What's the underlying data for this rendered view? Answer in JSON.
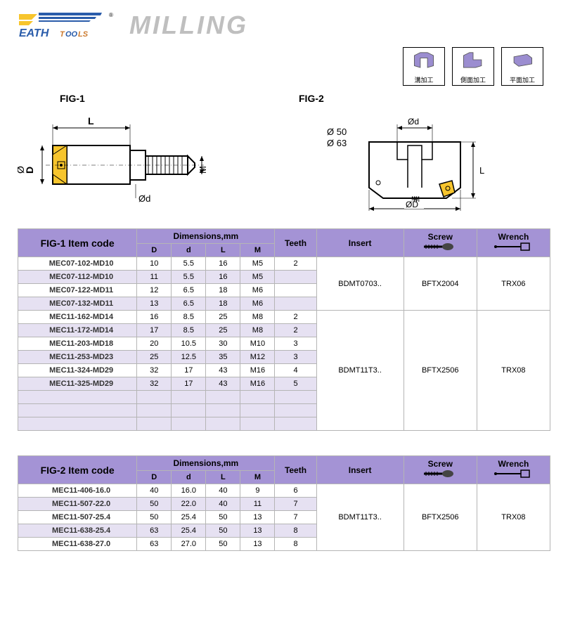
{
  "header": {
    "brand_top": "EATH",
    "brand_sub": "TOOLS",
    "title": "MILLING"
  },
  "icons": [
    {
      "label": "溝加工"
    },
    {
      "label": "側面加工"
    },
    {
      "label": "平面加工"
    }
  ],
  "fig1": {
    "title": "FIG-1",
    "labels": {
      "L": "L",
      "D": "D",
      "d": "Ød",
      "M": "M"
    }
  },
  "fig2": {
    "title": "FIG-2",
    "diam1": "Ø 50",
    "diam2": "Ø 63",
    "labels": {
      "d": "Ød",
      "D": "ØD",
      "M": "M",
      "L": "L"
    }
  },
  "table1": {
    "head_item": "FIG-1 Item code",
    "head_dim": "Dimensions,mm",
    "col_D": "D",
    "col_d": "d",
    "col_L": "L",
    "col_M": "M",
    "col_teeth": "Teeth",
    "col_insert": "Insert",
    "col_screw": "Screw",
    "col_wrench": "Wrench",
    "rows": [
      {
        "code": "MEC07-102-MD10",
        "D": "10",
        "d": "5.5",
        "L": "16",
        "M": "M5",
        "teeth": "2",
        "insert": "BDMT0703..",
        "screw": "BFTX2004",
        "wrench": "TRX06"
      },
      {
        "code": "MEC07-112-MD10",
        "D": "11",
        "d": "5.5",
        "L": "16",
        "M": "M5"
      },
      {
        "code": "MEC07-122-MD11",
        "D": "12",
        "d": "6.5",
        "L": "18",
        "M": "M6"
      },
      {
        "code": "MEC07-132-MD11",
        "D": "13",
        "d": "6.5",
        "L": "18",
        "M": "M6"
      },
      {
        "code": "MEC11-162-MD14",
        "D": "16",
        "d": "8.5",
        "L": "25",
        "M": "M8",
        "teeth": "2",
        "insert": "BDMT11T3..",
        "screw": "BFTX2506",
        "wrench": "TRX08"
      },
      {
        "code": "MEC11-172-MD14",
        "D": "17",
        "d": "8.5",
        "L": "25",
        "M": "M8",
        "teeth": "2"
      },
      {
        "code": "MEC11-203-MD18",
        "D": "20",
        "d": "10.5",
        "L": "30",
        "M": "M10",
        "teeth": "3"
      },
      {
        "code": "MEC11-253-MD23",
        "D": "25",
        "d": "12.5",
        "L": "35",
        "M": "M12",
        "teeth": "3"
      },
      {
        "code": "MEC11-324-MD29",
        "D": "32",
        "d": "17",
        "L": "43",
        "M": "M16",
        "teeth": "4"
      },
      {
        "code": "MEC11-325-MD29",
        "D": "32",
        "d": "17",
        "L": "43",
        "M": "M16",
        "teeth": "5"
      }
    ]
  },
  "table2": {
    "head_item": "FIG-2 Item code",
    "head_dim": "Dimensions,mm",
    "col_D": "D",
    "col_d": "d",
    "col_L": "L",
    "col_M": "M",
    "col_teeth": "Teeth",
    "col_insert": "Insert",
    "col_screw": "Screw",
    "col_wrench": "Wrench",
    "rows": [
      {
        "code": "MEC11-406-16.0",
        "D": "40",
        "d": "16.0",
        "L": "40",
        "M": "9",
        "teeth": "6",
        "insert": "BDMT11T3..",
        "screw": "BFTX2506",
        "wrench": "TRX08"
      },
      {
        "code": "MEC11-507-22.0",
        "D": "50",
        "d": "22.0",
        "L": "40",
        "M": "11",
        "teeth": "7"
      },
      {
        "code": "MEC11-507-25.4",
        "D": "50",
        "d": "25.4",
        "L": "50",
        "M": "13",
        "teeth": "7"
      },
      {
        "code": "MEC11-638-25.4",
        "D": "63",
        "d": "25.4",
        "L": "50",
        "M": "13",
        "teeth": "8"
      },
      {
        "code": "MEC11-638-27.0",
        "D": "63",
        "d": "27.0",
        "L": "50",
        "M": "13",
        "teeth": "8"
      }
    ]
  },
  "colors": {
    "header_bg": "#a493d5",
    "alt_row": "#e6e1f2",
    "accent_yellow": "#f7c52d",
    "accent_purple": "#9b8dd0",
    "accent_blue": "#2a5caa",
    "accent_orange": "#cc7a2e"
  }
}
